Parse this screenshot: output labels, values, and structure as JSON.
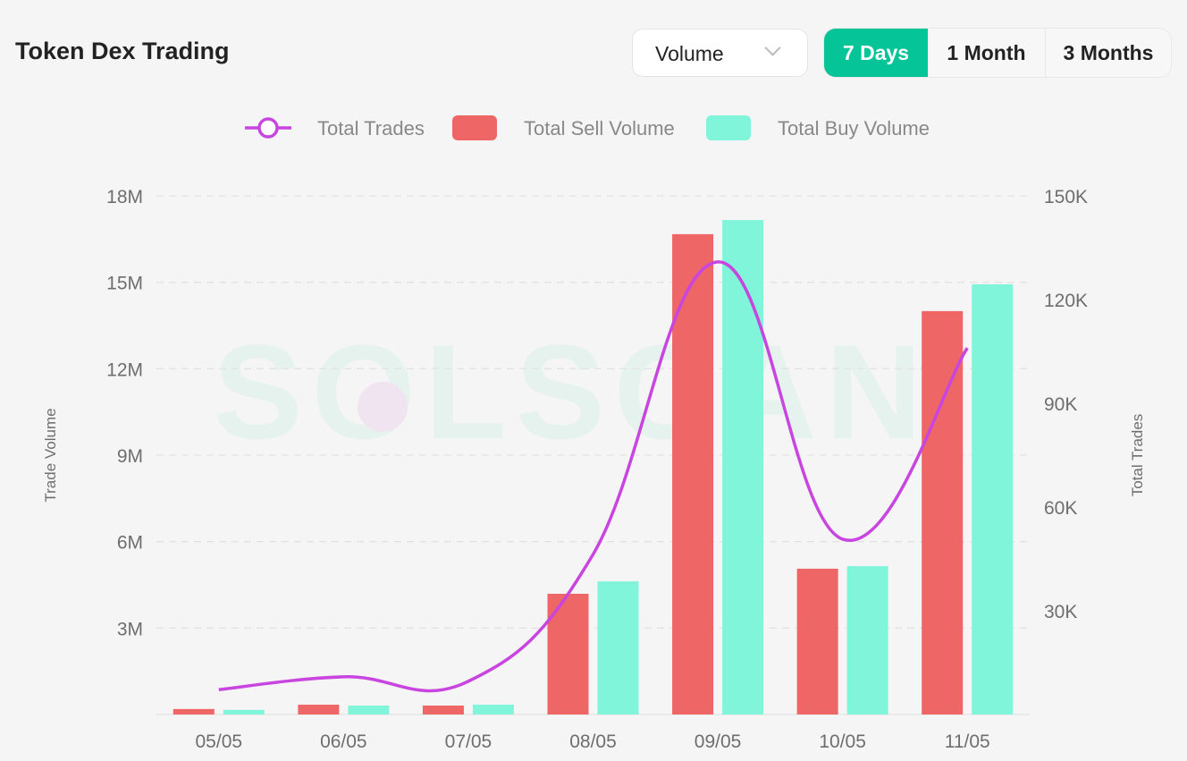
{
  "header": {
    "title": "Token Dex Trading",
    "metric_select": "Volume",
    "ranges": [
      "7 Days",
      "1 Month",
      "3 Months"
    ],
    "active_range": "7 Days"
  },
  "watermark": "SOLSCAN",
  "chart_data": {
    "type": "bar+line",
    "categories": [
      "05/05",
      "06/05",
      "07/05",
      "08/05",
      "09/05",
      "10/05",
      "11/05"
    ],
    "series": [
      {
        "name": "Total Trades",
        "type": "line",
        "axis": "right",
        "color": "#c845e0",
        "values": [
          7200,
          10900,
          9600,
          46300,
          130900,
          50700,
          106000
        ]
      },
      {
        "name": "Total Sell Volume",
        "type": "bar",
        "axis": "left",
        "color": "#ee6666",
        "values": [
          190000,
          340000,
          310000,
          4190000,
          16670000,
          5060000,
          14000000
        ]
      },
      {
        "name": "Total Buy Volume",
        "type": "bar",
        "axis": "left",
        "color": "#80f5da",
        "values": [
          160000,
          310000,
          340000,
          4620000,
          17160000,
          5150000,
          14930000
        ]
      }
    ],
    "ylabel": "Trade Volume",
    "y2label": "Total Trades",
    "ylim": [
      0,
      18000000
    ],
    "y2lim": [
      0,
      150000
    ],
    "yticks": [
      "3M",
      "6M",
      "9M",
      "12M",
      "15M",
      "18M"
    ],
    "y2ticks": [
      "30K",
      "60K",
      "90K",
      "120K",
      "150K"
    ],
    "grid": true,
    "legend": "top-center"
  }
}
